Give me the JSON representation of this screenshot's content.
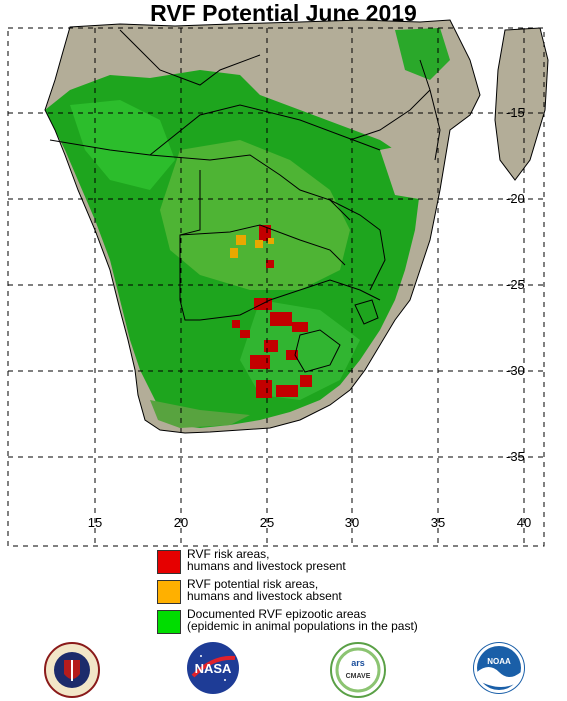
{
  "title": "RVF Potential June 2019",
  "latitude_labels": [
    "-15",
    "-20",
    "-25",
    "-30",
    "-35"
  ],
  "longitude_labels": [
    "15",
    "20",
    "25",
    "30",
    "35",
    "40"
  ],
  "legend": {
    "items": [
      {
        "line1": "RVF risk areas,",
        "line2": "humans and livestock present",
        "color": "#e60000"
      },
      {
        "line1": "RVF potential risk areas,",
        "line2": "humans and livestock absent",
        "color": "#ffb000"
      },
      {
        "line1": "Documented RVF epizootic areas",
        "line2": "(epidemic in animal populations in the past)",
        "color": "#00dd00"
      }
    ]
  },
  "logos": [
    {
      "name": "Defense Health Agency",
      "icon": "dha-seal"
    },
    {
      "name": "NASA",
      "label": "NASA",
      "icon": "nasa-meatball"
    },
    {
      "name": "USDA ARS CMAVE",
      "label": "CMAVE",
      "icon": "usda-ars-logo"
    },
    {
      "name": "NOAA",
      "label": "NOAA",
      "icon": "noaa-logo"
    }
  ],
  "colors": {
    "land": "#b8b4a0",
    "epizootic_green": "#22aa22",
    "risk_red": "#cc0000",
    "potential_orange": "#e8a800"
  }
}
